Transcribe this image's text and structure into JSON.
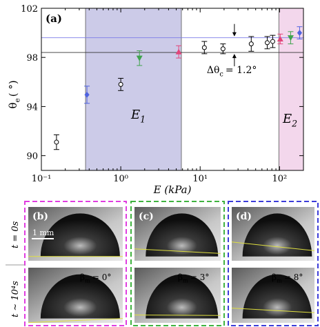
{
  "chart_data": {
    "type": "scatter",
    "panel_label": "(a)",
    "xlabel": "E (kPa)",
    "ylabel": {
      "symbol": "θ",
      "subscript": "e",
      "unit": "( °)"
    },
    "xscale": "log",
    "xlim": [
      0.1,
      200
    ],
    "ylim": [
      88.8,
      102
    ],
    "xticks": [
      {
        "value": 0.1,
        "label": "10⁻¹"
      },
      {
        "value": 1,
        "label": "10⁰"
      },
      {
        "value": 10,
        "label": "10¹"
      },
      {
        "value": 100,
        "label": "10²"
      }
    ],
    "yticks": [
      90,
      94,
      98,
      102
    ],
    "regions": [
      {
        "label": {
          "symbol": "E",
          "subscript": "1"
        },
        "range": [
          0.36,
          5.8
        ],
        "color": "#cccbe8"
      },
      {
        "label": {
          "symbol": "E",
          "subscript": "2"
        },
        "range": [
          98,
          200
        ],
        "color": "#f3d7ec"
      }
    ],
    "hlines": [
      {
        "value": 99.6,
        "color": "#7b7be8"
      },
      {
        "value": 98.4,
        "color": "#333333"
      }
    ],
    "annotation": {
      "symbol": "Δθ",
      "subscript": "c",
      "text": "= 1.2°",
      "x": 27
    },
    "series": [
      {
        "marker": "circle",
        "color": "#000000",
        "x": [
          0.155,
          1.0,
          11.3,
          19.4,
          44,
          70,
          82
        ],
        "values": [
          91.1,
          95.8,
          98.8,
          98.7,
          99.1,
          99.2,
          99.3
        ],
        "errors": [
          0.6,
          0.5,
          0.5,
          0.4,
          0.6,
          0.5,
          0.5
        ]
      },
      {
        "marker": "diamond",
        "color": "#4f63e0",
        "x": [
          0.375,
          179
        ],
        "values": [
          94.96,
          100.0
        ],
        "errors": [
          0.7,
          0.5
        ]
      },
      {
        "marker": "triangle-down",
        "color": "#3fa34d",
        "x": [
          1.72,
          138
        ],
        "values": [
          97.94,
          99.6
        ],
        "errors": [
          0.6,
          0.5
        ]
      },
      {
        "marker": "triangle-up",
        "color": "#e2457a",
        "x": [
          5.37,
          102
        ],
        "values": [
          98.45,
          99.5
        ],
        "errors": [
          0.5,
          0.4
        ]
      }
    ]
  },
  "panels": {
    "row_labels": [
      "t = 0s",
      "t ∼ 10⁴s"
    ],
    "scale_bar": "1 mm",
    "items": [
      {
        "label": "(b)",
        "beta": {
          "symbol": "β",
          "subscript": "m",
          "text": "= 0°"
        }
      },
      {
        "label": "(c)",
        "beta": {
          "symbol": "β",
          "subscript": "m",
          "text": "= 3°"
        }
      },
      {
        "label": "(d)",
        "beta": {
          "symbol": "β",
          "subscript": "m",
          "text": "= 8°"
        }
      }
    ]
  }
}
